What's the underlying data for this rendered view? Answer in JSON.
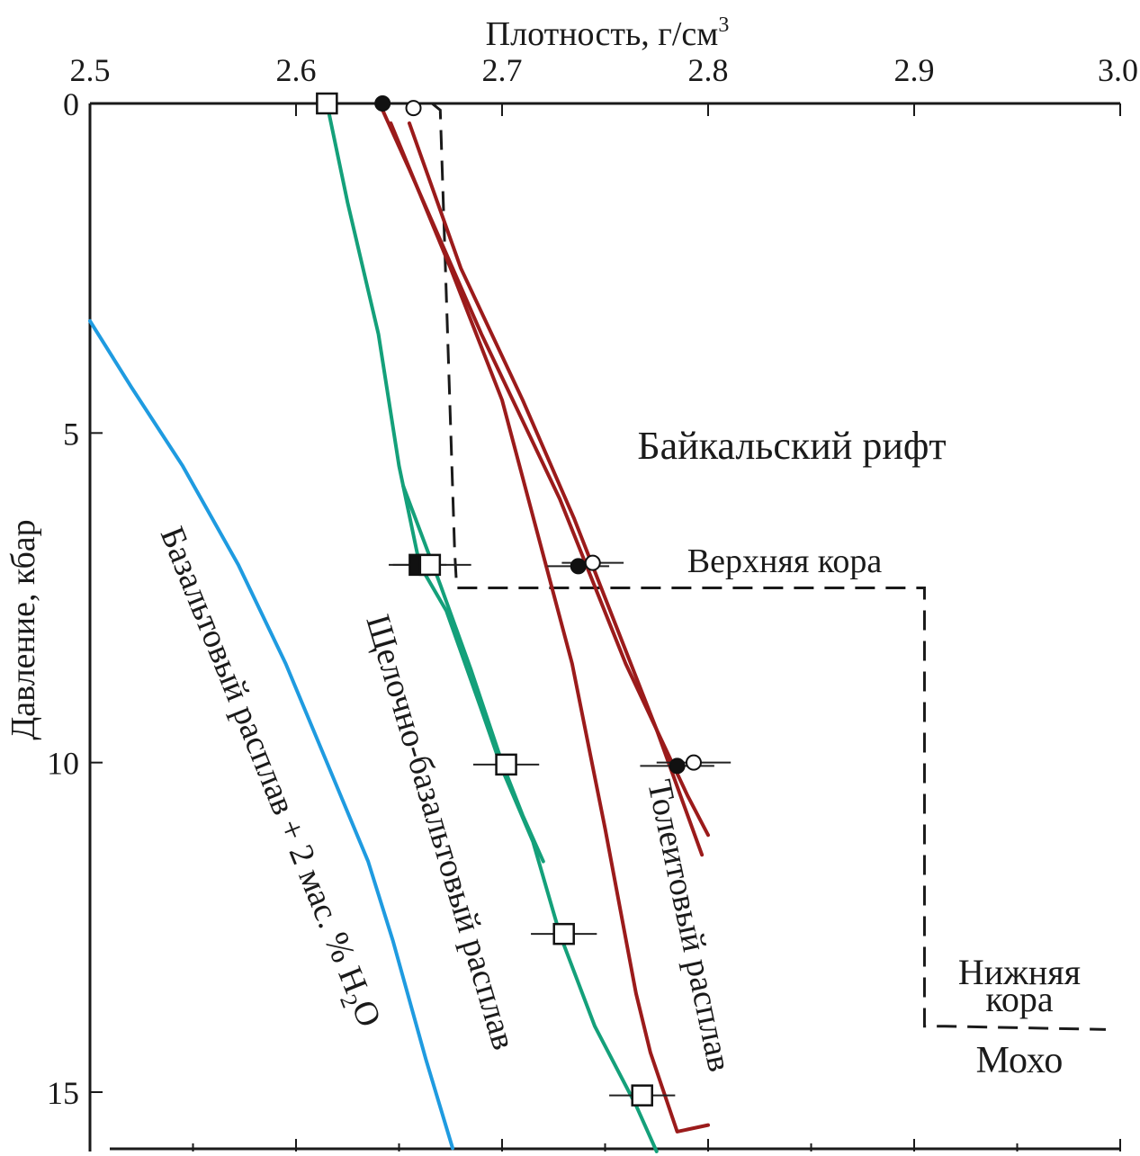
{
  "chart_data": {
    "type": "line",
    "xlabel": "Плотность, г/см",
    "xlabel_sup": "3",
    "ylabel": "Давление, кбар",
    "xlim": [
      2.5,
      3.0
    ],
    "ylim": [
      0,
      15.8
    ],
    "y_inverted": true,
    "x_axis_position": "top",
    "x_ticks": [
      2.5,
      2.6,
      2.7,
      2.8,
      2.9,
      3.0
    ],
    "x_tick_labels": [
      "2.5",
      "2.6",
      "2.7",
      "2.8",
      "2.9",
      "3.0"
    ],
    "y_ticks": [
      0,
      5,
      10,
      15
    ],
    "y_tick_labels": [
      "0",
      "5",
      "10",
      "15"
    ],
    "grid": false,
    "colors": {
      "tholeiite": "#9b1b1b",
      "alkali": "#14a07a",
      "basalt_h2o": "#1f9be0",
      "profile": "#1a1a1a",
      "errorbar": "#222222"
    },
    "series": [
      {
        "group": "tholeiite",
        "points": [
          [
            2.642,
            0.1
          ],
          [
            2.655,
            1
          ],
          [
            2.69,
            3.5
          ],
          [
            2.728,
            6
          ],
          [
            2.76,
            8.5
          ],
          [
            2.79,
            10.5
          ],
          [
            2.8,
            11.1
          ]
        ]
      },
      {
        "group": "tholeiite",
        "points": [
          [
            2.655,
            0.3
          ],
          [
            2.68,
            2.5
          ],
          [
            2.71,
            4.5
          ],
          [
            2.735,
            6.3
          ],
          [
            2.75,
            7.5
          ],
          [
            2.775,
            9.5
          ],
          [
            2.797,
            11.4
          ]
        ]
      },
      {
        "group": "tholeiite",
        "points": [
          [
            2.646,
            0.3
          ],
          [
            2.675,
            2.5
          ],
          [
            2.7,
            4.5
          ],
          [
            2.717,
            6.5
          ],
          [
            2.734,
            8.5
          ],
          [
            2.75,
            11
          ],
          [
            2.765,
            13.5
          ],
          [
            2.772,
            14.4
          ],
          [
            2.785,
            15.6
          ],
          [
            2.8,
            15.5
          ]
        ]
      },
      {
        "group": "alkali",
        "points": [
          [
            2.615,
            0
          ],
          [
            2.625,
            1.5
          ],
          [
            2.64,
            3.5
          ],
          [
            2.65,
            5.5
          ],
          [
            2.66,
            7
          ],
          [
            2.673,
            7.7
          ],
          [
            2.69,
            9.2
          ],
          [
            2.7,
            10.1
          ],
          [
            2.715,
            11.2
          ],
          [
            2.728,
            12.6
          ],
          [
            2.745,
            14
          ],
          [
            2.765,
            15.2
          ],
          [
            2.775,
            15.9
          ]
        ]
      },
      {
        "group": "alkali",
        "points": [
          [
            2.652,
            5.8
          ],
          [
            2.67,
            7.3
          ],
          [
            2.685,
            8.6
          ],
          [
            2.7,
            10
          ],
          [
            2.71,
            10.8
          ],
          [
            2.72,
            11.5
          ]
        ]
      },
      {
        "group": "basalt_h2o",
        "points": [
          [
            2.5,
            3.3
          ],
          [
            2.52,
            4.3
          ],
          [
            2.545,
            5.5
          ],
          [
            2.572,
            7
          ],
          [
            2.595,
            8.5
          ],
          [
            2.615,
            10
          ],
          [
            2.635,
            11.5
          ],
          [
            2.647,
            12.7
          ],
          [
            2.663,
            14.5
          ],
          [
            2.676,
            15.85
          ]
        ]
      }
    ],
    "points": [
      {
        "shape": "square",
        "fill": "white",
        "x": 2.615,
        "y": 0,
        "xerr": 0
      },
      {
        "shape": "square",
        "fill": "black",
        "x": 2.66,
        "y": 7,
        "xerr": 0.013
      },
      {
        "shape": "square",
        "fill": "white",
        "x": 2.665,
        "y": 7,
        "xerr": 0.02
      },
      {
        "shape": "square",
        "fill": "white",
        "x": 2.702,
        "y": 10.03,
        "xerr": 0.016
      },
      {
        "shape": "square",
        "fill": "white",
        "x": 2.73,
        "y": 12.6,
        "xerr": 0.016
      },
      {
        "shape": "square",
        "fill": "white",
        "x": 2.768,
        "y": 15.05,
        "xerr": 0.016
      },
      {
        "shape": "circle",
        "fill": "black",
        "x": 2.642,
        "y": 0,
        "xerr": 0
      },
      {
        "shape": "circle",
        "fill": "white",
        "x": 2.657,
        "y": 0.07,
        "xerr": 0
      },
      {
        "shape": "circle",
        "fill": "black",
        "x": 2.737,
        "y": 7.02,
        "xerr": 0.015
      },
      {
        "shape": "circle",
        "fill": "white",
        "x": 2.744,
        "y": 6.97,
        "xerr": 0.015
      },
      {
        "shape": "circle",
        "fill": "black",
        "x": 2.785,
        "y": 10.05,
        "xerr": 0.018
      },
      {
        "shape": "circle",
        "fill": "white",
        "x": 2.793,
        "y": 10.0,
        "xerr": 0.018
      }
    ],
    "crust_profile": [
      [
        2.666,
        0
      ],
      [
        2.67,
        0.1
      ],
      [
        2.672,
        2
      ],
      [
        2.677,
        6.8
      ],
      [
        2.678,
        7.35
      ],
      [
        2.905,
        7.35
      ],
      [
        2.905,
        14.0
      ],
      [
        2.915,
        14.0
      ],
      [
        2.993,
        14.05
      ]
    ],
    "labels": {
      "region": "Байкальский рифт",
      "upper_crust": "Верхняя кора",
      "lower_crust_1": "Нижняя",
      "lower_crust_2": "кора",
      "moho": "Мохо",
      "tholeiite": "Толеитовый расплав",
      "alkali": "Щелочно-базальтовый расплав",
      "basalt_h2o_main": "Базальтовый расплав + 2 мас. % H",
      "basalt_h2o_sub": "2",
      "basalt_h2o_tail": "O"
    }
  }
}
